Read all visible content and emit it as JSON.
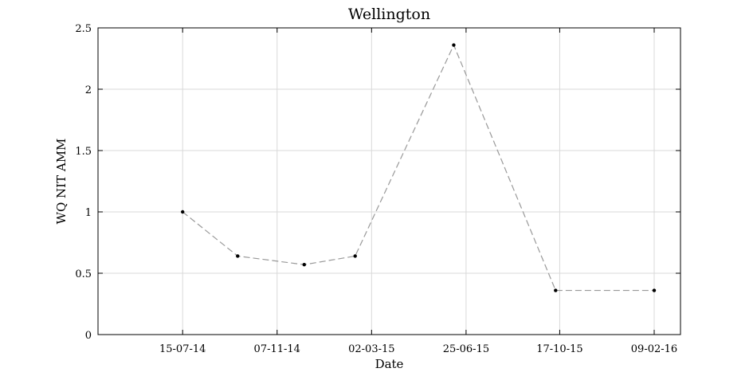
{
  "chart_data": {
    "type": "line",
    "title": "Wellington",
    "xlabel": "Date",
    "ylabel": "WQ NIT AMM",
    "x": [
      "2014-07-15",
      "2014-09-20",
      "2014-12-10",
      "2015-02-10",
      "2015-06-10",
      "2015-10-12",
      "2016-02-09"
    ],
    "y": [
      1.0,
      0.64,
      0.57,
      0.64,
      2.36,
      0.36,
      0.36
    ],
    "xlim": [
      "2014-04-03",
      "2016-03-12"
    ],
    "ylim": [
      0,
      2.5
    ],
    "xticks": [
      "2014-07-15",
      "2014-11-07",
      "2015-03-02",
      "2015-06-25",
      "2015-10-17",
      "2016-02-09"
    ],
    "xtick_labels": [
      "15-07-14",
      "07-11-14",
      "02-03-15",
      "25-06-15",
      "17-10-15",
      "09-02-16"
    ],
    "yticks": [
      0,
      0.5,
      1,
      1.5,
      2,
      2.5
    ],
    "ytick_labels": [
      "0",
      "0.5",
      "1",
      "1.5",
      "2",
      "2.5"
    ],
    "grid": true,
    "line_style": "dashed",
    "line_color": "#999999",
    "marker_color": "#000000"
  }
}
